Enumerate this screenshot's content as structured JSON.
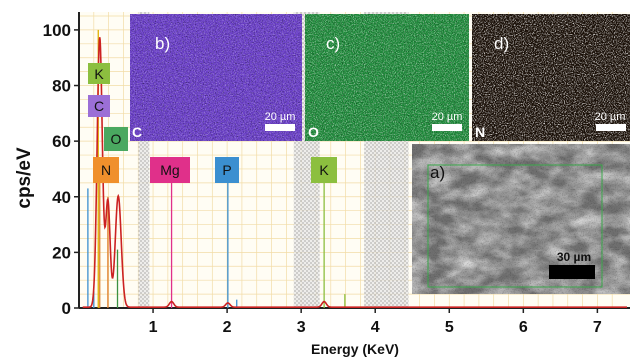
{
  "chart_data": {
    "type": "line",
    "xlabel": "Energy (KeV)",
    "ylabel": "cps/eV",
    "xlim": [
      0,
      7.4
    ],
    "ylim": [
      0,
      105
    ],
    "x_ticks": [
      "1",
      "2",
      "3",
      "4",
      "5",
      "6",
      "7"
    ],
    "y_ticks": [
      "0",
      "20",
      "40",
      "60",
      "80",
      "100"
    ],
    "grid": true,
    "spectrum": {
      "color": "#cc2222",
      "peaks": [
        {
          "x": 0.28,
          "y": 97
        },
        {
          "x": 0.39,
          "y": 38
        },
        {
          "x": 0.53,
          "y": 40
        },
        {
          "x": 1.25,
          "y": 2
        },
        {
          "x": 2.01,
          "y": 1.5
        },
        {
          "x": 3.31,
          "y": 2
        }
      ]
    },
    "marker_lines": [
      {
        "x": 0.12,
        "y": 43,
        "color": "#3b8fd0"
      },
      {
        "x": 0.2,
        "y": 6,
        "color": "#3b8fd0"
      },
      {
        "x": 0.26,
        "y": 100,
        "color": "#e0b000"
      },
      {
        "x": 0.28,
        "y": 46,
        "color": "#e08030"
      },
      {
        "x": 0.39,
        "y": 40,
        "color": "#e08030"
      },
      {
        "x": 0.52,
        "y": 21,
        "color": "#3b9040"
      },
      {
        "x": 1.25,
        "y": 46,
        "color": "#e0308a"
      },
      {
        "x": 2.01,
        "y": 46,
        "color": "#3b8fd0"
      },
      {
        "x": 2.13,
        "y": 3,
        "color": "#3b8fd0"
      },
      {
        "x": 3.31,
        "y": 46,
        "color": "#8cbf3f"
      },
      {
        "x": 3.59,
        "y": 5,
        "color": "#8cbf3f"
      }
    ],
    "element_labels": [
      {
        "text": "K",
        "color": "#8cbf3f"
      },
      {
        "text": "C",
        "color": "#9b6fd6"
      },
      {
        "text": "O",
        "color": "#4aa860"
      },
      {
        "text": "N",
        "color": "#f0902c"
      },
      {
        "text": "Mg",
        "color": "#e0308a"
      },
      {
        "text": "P",
        "color": "#3b8fd0"
      },
      {
        "text": "K",
        "color": "#8cbf3f"
      }
    ],
    "insets": [
      {
        "label": "b)",
        "element": "C",
        "scale": "20 µm",
        "color": "#6a3fc8"
      },
      {
        "label": "c)",
        "element": "O",
        "scale": "20 µm",
        "color": "#2aa84a"
      },
      {
        "label": "d)",
        "element": "N",
        "scale": "20 µm",
        "color": "#e0802a"
      },
      {
        "label": "a)",
        "scale": "30 µm"
      }
    ]
  }
}
